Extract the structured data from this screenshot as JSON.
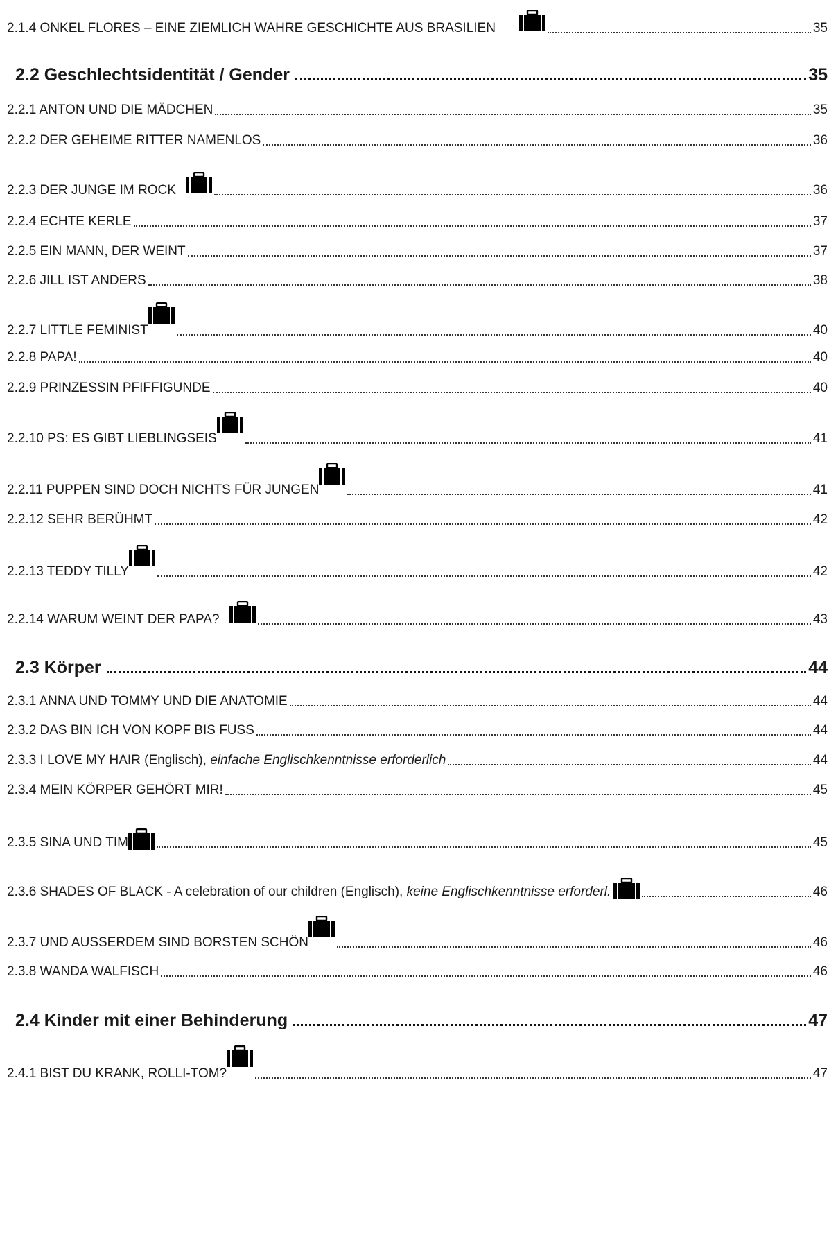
{
  "entries": [
    {
      "level": "sub",
      "label": "2.1.4 ONKEL FLORES – EINE ZIEMLICH WAHRE GESCHICHTE AUS BRASILIEN",
      "page": "35",
      "icon": "briefcase-icon"
    },
    {
      "level": "section",
      "label": "2.2 Geschlechtsidentität / Gender",
      "page": "35"
    },
    {
      "level": "sub",
      "label": "2.2.1 ANTON UND DIE MÄDCHEN",
      "page": "35"
    },
    {
      "level": "sub",
      "label": "2.2.2 DER GEHEIME RITTER NAMENLOS",
      "page": "36"
    },
    {
      "level": "sub",
      "label": "2.2.3 DER JUNGE IM ROCK",
      "page": "36",
      "icon": "briefcase-icon"
    },
    {
      "level": "sub",
      "label": "2.2.4 ECHTE KERLE",
      "page": "37"
    },
    {
      "level": "sub",
      "label": "2.2.5 EIN MANN, DER WEINT",
      "page": "37"
    },
    {
      "level": "sub",
      "label": "2.2.6 JILL IST ANDERS",
      "page": "38"
    },
    {
      "level": "sub",
      "label": "2.2.7 LITTLE FEMINIST",
      "page": "40",
      "icon": "briefcase-icon"
    },
    {
      "level": "sub",
      "label": "2.2.8 PAPA!",
      "page": "40"
    },
    {
      "level": "sub",
      "label": "2.2.9 PRINZESSIN PFIFFIGUNDE",
      "page": "40"
    },
    {
      "level": "sub",
      "label": "2.2.10 PS: ES GIBT LIEBLINGSEIS",
      "page": "41",
      "icon": "briefcase-icon"
    },
    {
      "level": "sub",
      "label": "2.2.11 PUPPEN SIND DOCH NICHTS FÜR JUNGEN",
      "page": "41",
      "icon": "briefcase-icon"
    },
    {
      "level": "sub",
      "label": "2.2.12 SEHR BERÜHMT",
      "page": "42"
    },
    {
      "level": "sub",
      "label": "2.2.13 TEDDY TILLY",
      "page": "42",
      "icon": "briefcase-icon"
    },
    {
      "level": "sub",
      "label": "2.2.14 WARUM WEINT DER PAPA?",
      "page": "43",
      "icon": "briefcase-icon"
    },
    {
      "level": "section",
      "label": "2.3 Körper",
      "page": "44"
    },
    {
      "level": "sub",
      "label": "2.3.1 ANNA UND TOMMY UND DIE ANATOMIE",
      "page": "44"
    },
    {
      "level": "sub",
      "label": "2.3.2 DAS BIN ICH VON KOPF BIS FUSS",
      "page": "44"
    },
    {
      "level": "sub",
      "label": "2.3.3 I LOVE MY HAIR (Englisch), ",
      "note": "einfache Englischkenntnisse erforderlich",
      "page": "44"
    },
    {
      "level": "sub",
      "label": "2.3.4 MEIN KÖRPER GEHÖRT MIR!",
      "page": "45"
    },
    {
      "level": "sub",
      "label": "2.3.5 SINA UND TIM",
      "page": "45",
      "icon": "briefcase-icon"
    },
    {
      "level": "sub",
      "label": "2.3.6 SHADES OF BLACK - A celebration of our children (Englisch), ",
      "note": "keine Englischkenntnisse erforderl.",
      "page": "46",
      "icon": "briefcase-icon"
    },
    {
      "level": "sub",
      "label": "2.3.7 UND AUSSERDEM SIND BORSTEN SCHÖN",
      "page": "46",
      "icon": "briefcase-icon"
    },
    {
      "level": "sub",
      "label": "2.3.8 WANDA WALFISCH",
      "page": "46"
    },
    {
      "level": "section",
      "label": "2.4 Kinder mit einer Behinderung",
      "page": "47"
    },
    {
      "level": "sub",
      "label": "2.4.1 BIST DU KRANK, ROLLI-TOM?",
      "page": "47",
      "icon": "briefcase-icon"
    }
  ]
}
